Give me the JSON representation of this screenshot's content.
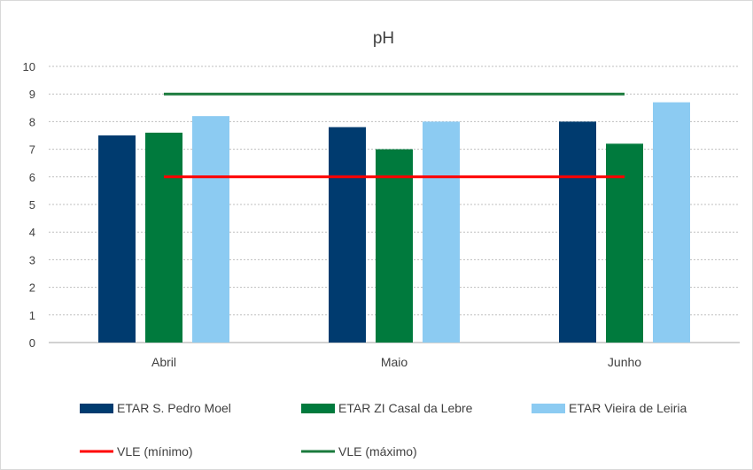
{
  "chart_data": {
    "type": "bar",
    "title": "pH",
    "categories": [
      "Abril",
      "Maio",
      "Junho"
    ],
    "ylim": [
      0,
      10
    ],
    "yticks": [
      0,
      1,
      2,
      3,
      4,
      5,
      6,
      7,
      8,
      9,
      10
    ],
    "grid": true,
    "legend_position": "bottom",
    "series": [
      {
        "name": "ETAR S. Pedro Moel",
        "values": [
          7.5,
          7.8,
          8.0
        ],
        "color": "#003b6f"
      },
      {
        "name": "ETAR ZI Casal da Lebre",
        "values": [
          7.6,
          7.0,
          7.2
        ],
        "color": "#007a3d"
      },
      {
        "name": "ETAR Vieira de Leiria",
        "values": [
          8.2,
          8.0,
          8.7
        ],
        "color": "#8ccbf2"
      }
    ],
    "lines": [
      {
        "name": "VLE (mínimo)",
        "values": [
          6,
          6,
          6
        ],
        "color": "#ff0000"
      },
      {
        "name": "VLE (máximo)",
        "values": [
          9,
          9,
          9
        ],
        "color": "#1a7a3c"
      }
    ]
  }
}
